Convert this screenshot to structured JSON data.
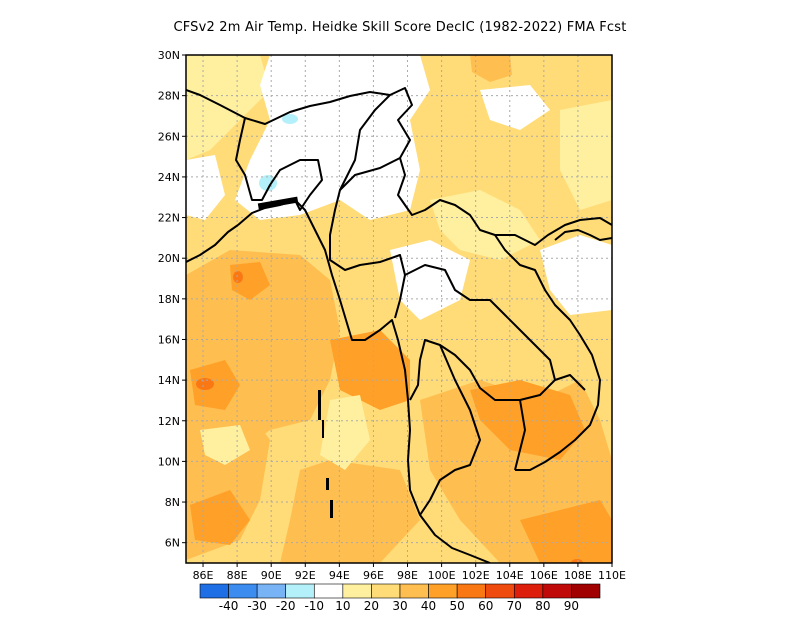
{
  "title": "CFSv2  2m Air Temp. Heidke Skill Score DecIC (1982-2022) FMA Fcst",
  "map": {
    "lat_ticks": [
      "30N",
      "28N",
      "26N",
      "24N",
      "22N",
      "20N",
      "18N",
      "16N",
      "14N",
      "12N",
      "10N",
      "8N",
      "6N"
    ],
    "lon_ticks": [
      "86E",
      "88E",
      "90E",
      "92E",
      "94E",
      "96E",
      "98E",
      "100E",
      "102E",
      "104E",
      "106E",
      "108E",
      "110E"
    ],
    "lat_range": [
      5,
      30
    ],
    "lon_range": [
      85,
      110
    ]
  },
  "colorbar": {
    "colors": [
      "#1e6ee6",
      "#3c8cf0",
      "#78b4f5",
      "#b4f0fa",
      "#ffffff",
      "#fff0a0",
      "#ffdc78",
      "#ffbe50",
      "#ffa028",
      "#fa7814",
      "#f04b0f",
      "#dc1e0a",
      "#c00a0a",
      "#a00000"
    ],
    "labels": [
      "-40",
      "-30",
      "-20",
      "-10",
      "10",
      "20",
      "30",
      "40",
      "50",
      "60",
      "70",
      "80",
      "90"
    ]
  },
  "fill_colors": {
    "white": "#ffffff",
    "light_yellow": "#fff0a0",
    "yellow": "#ffdc78",
    "light_orange": "#ffbe50",
    "orange": "#ffa028",
    "dark_orange": "#fa7814",
    "light_blue": "#b4f0fa"
  }
}
